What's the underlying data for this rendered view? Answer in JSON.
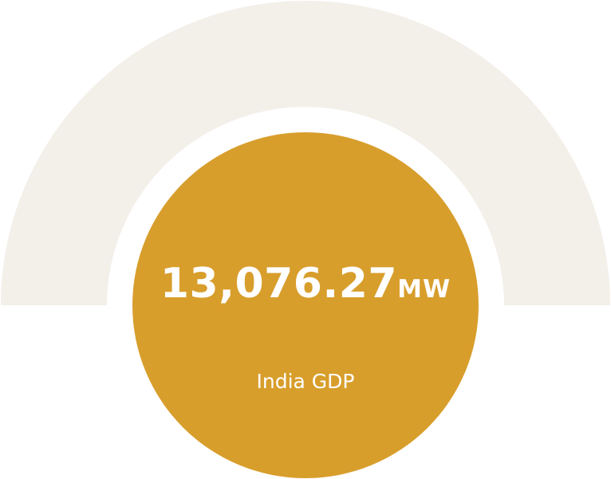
{
  "stat": {
    "value": "13,076.27",
    "unit": "MW",
    "label": "India GDP"
  },
  "colors": {
    "arch": "#f3efe9",
    "disc": "#d89e2c",
    "text": "#ffffff",
    "background": "#ffffff"
  }
}
